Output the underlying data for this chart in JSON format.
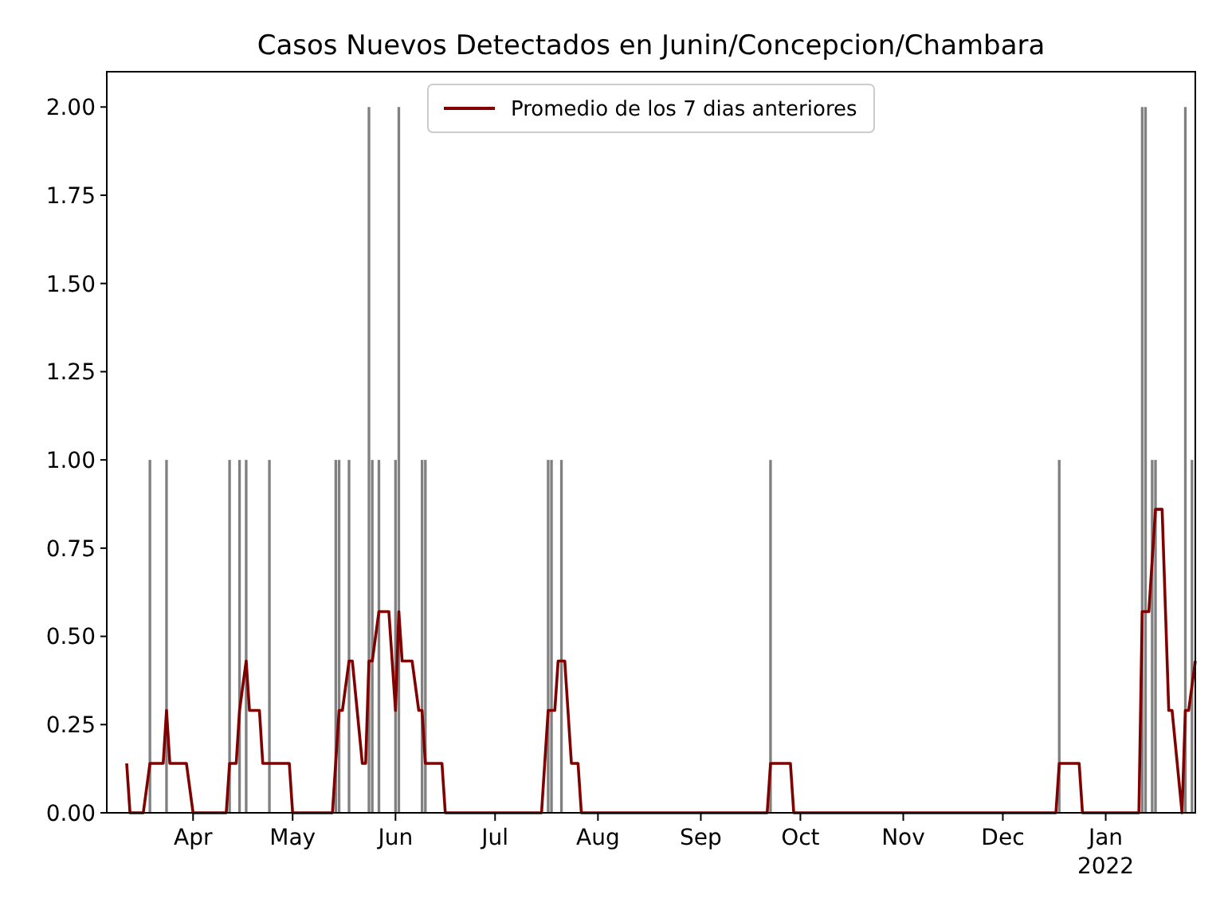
{
  "chart_data": {
    "type": "bar",
    "title": "Casos Nuevos Detectados en Junin/Concepcion/Chambara",
    "xlim": [
      "2021-03-06",
      "2022-01-28"
    ],
    "ylim": [
      0,
      2.1
    ],
    "yticks": [
      {
        "value": 0,
        "label": "0.00"
      },
      {
        "value": 0.25,
        "label": "0.25"
      },
      {
        "value": 0.5,
        "label": "0.50"
      },
      {
        "value": 0.75,
        "label": "0.75"
      },
      {
        "value": 1,
        "label": "1.00"
      },
      {
        "value": 1.25,
        "label": "1.25"
      },
      {
        "value": 1.5,
        "label": "1.50"
      },
      {
        "value": 1.75,
        "label": "1.75"
      },
      {
        "value": 2,
        "label": "2.00"
      }
    ],
    "xticks": [
      {
        "value": "2021-04-01",
        "label": "Apr"
      },
      {
        "value": "2021-05-01",
        "label": "May"
      },
      {
        "value": "2021-06-01",
        "label": "Jun"
      },
      {
        "value": "2021-07-01",
        "label": "Jul"
      },
      {
        "value": "2021-08-01",
        "label": "Aug"
      },
      {
        "value": "2021-09-01",
        "label": "Sep"
      },
      {
        "value": "2021-10-01",
        "label": "Oct"
      },
      {
        "value": "2021-11-01",
        "label": "Nov"
      },
      {
        "value": "2021-12-01",
        "label": "Dec"
      },
      {
        "value": "2022-01-01",
        "label": "Jan\n2022"
      }
    ],
    "legend": "top",
    "grid": false,
    "series": [
      {
        "color": "#808080",
        "x": [
          "2021-03-19",
          "2021-03-24",
          "2021-04-12",
          "2021-04-15",
          "2021-04-17",
          "2021-04-24",
          "2021-05-14",
          "2021-05-15",
          "2021-05-18",
          "2021-05-24",
          "2021-05-25",
          "2021-05-27",
          "2021-06-01",
          "2021-06-02",
          "2021-06-09",
          "2021-06-10",
          "2021-07-17",
          "2021-07-18",
          "2021-07-21",
          "2021-09-22",
          "2021-12-18",
          "2022-01-12",
          "2022-01-13",
          "2022-01-15",
          "2022-01-16",
          "2022-01-25",
          "2022-01-27"
        ],
        "values": [
          1,
          1,
          1,
          1,
          1,
          1,
          1,
          1,
          1,
          2,
          1,
          1,
          1,
          2,
          1,
          1,
          1,
          1,
          1,
          1,
          1,
          2,
          2,
          1,
          1,
          2,
          1
        ]
      },
      {
        "type": "line",
        "name": "Promedio de los 7 dias anteriores",
        "color": "#800000",
        "x": [
          "2021-03-12",
          "2021-03-13",
          "2021-03-17",
          "2021-03-19",
          "2021-03-23",
          "2021-03-24",
          "2021-03-25",
          "2021-03-30",
          "2021-04-01",
          "2021-04-11",
          "2021-04-12",
          "2021-04-14",
          "2021-04-15",
          "2021-04-17",
          "2021-04-18",
          "2021-04-21",
          "2021-04-22",
          "2021-04-30",
          "2021-05-01",
          "2021-05-13",
          "2021-05-15",
          "2021-05-16",
          "2021-05-18",
          "2021-05-19",
          "2021-05-22",
          "2021-05-23",
          "2021-05-24",
          "2021-05-25",
          "2021-05-27",
          "2021-05-30",
          "2021-06-01",
          "2021-06-02",
          "2021-06-03",
          "2021-06-06",
          "2021-06-08",
          "2021-06-09",
          "2021-06-10",
          "2021-06-15",
          "2021-06-16",
          "2021-07-15",
          "2021-07-17",
          "2021-07-19",
          "2021-07-20",
          "2021-07-22",
          "2021-07-24",
          "2021-07-26",
          "2021-07-27",
          "2021-09-21",
          "2021-09-22",
          "2021-09-28",
          "2021-09-29",
          "2021-12-17",
          "2021-12-18",
          "2021-12-24",
          "2021-12-25",
          "2022-01-11",
          "2022-01-12",
          "2022-01-14",
          "2022-01-16",
          "2022-01-18",
          "2022-01-20",
          "2022-01-21",
          "2022-01-24",
          "2022-01-25",
          "2022-01-26",
          "2022-01-28"
        ],
        "values": [
          0.14,
          0,
          0,
          0.14,
          0.14,
          0.29,
          0.14,
          0.14,
          0,
          0,
          0.14,
          0.14,
          0.29,
          0.43,
          0.29,
          0.29,
          0.14,
          0.14,
          0,
          0,
          0.29,
          0.29,
          0.43,
          0.43,
          0.14,
          0.14,
          0.43,
          0.43,
          0.57,
          0.57,
          0.29,
          0.57,
          0.43,
          0.43,
          0.29,
          0.29,
          0.14,
          0.14,
          0,
          0,
          0.29,
          0.29,
          0.43,
          0.43,
          0.14,
          0.14,
          0,
          0,
          0.14,
          0.14,
          0,
          0,
          0.14,
          0.14,
          0,
          0,
          0.57,
          0.57,
          0.86,
          0.86,
          0.29,
          0.29,
          0,
          0.29,
          0.29,
          0.43
        ]
      }
    ]
  }
}
